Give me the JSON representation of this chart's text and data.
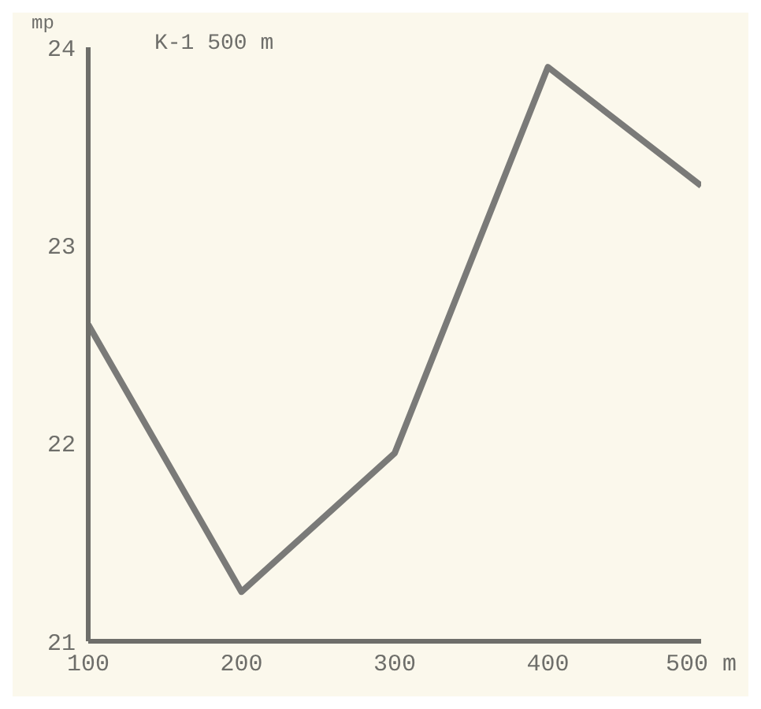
{
  "chart_data": {
    "type": "line",
    "title": "K-1  500 m",
    "ylabel": "mp",
    "x": [
      100,
      200,
      300,
      400,
      500
    ],
    "series": [
      {
        "color": "#7a7a78",
        "values": [
          22.6,
          21.25,
          21.95,
          23.9,
          23.3
        ]
      }
    ],
    "xlim": [
      100,
      500
    ],
    "xticks": [
      100,
      200,
      300,
      400,
      {
        "value": 500,
        "label": "500 m"
      }
    ],
    "ylim": [
      21,
      24
    ],
    "yticks": [
      21,
      22,
      23,
      24
    ],
    "grid": false,
    "marker": "none",
    "line_style": "solid"
  }
}
